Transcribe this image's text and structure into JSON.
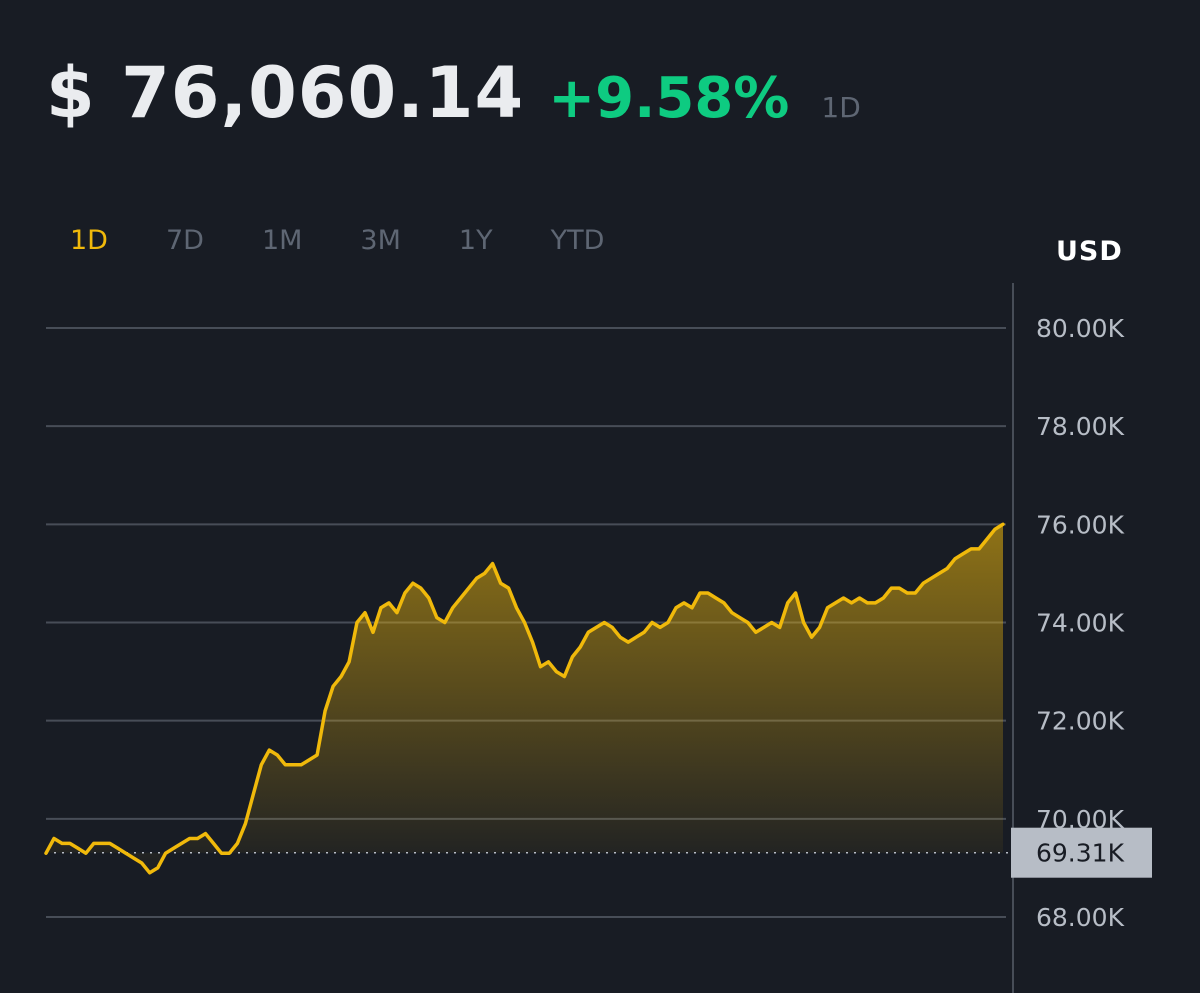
{
  "header": {
    "price": "$ 76,060.14",
    "change": "+9.58%",
    "period": "1D"
  },
  "range_tabs": [
    {
      "label": "1D",
      "active": true
    },
    {
      "label": "7D",
      "active": false
    },
    {
      "label": "1M",
      "active": false
    },
    {
      "label": "3M",
      "active": false
    },
    {
      "label": "1Y",
      "active": false
    },
    {
      "label": "YTD",
      "active": false
    }
  ],
  "currency": "USD",
  "colors": {
    "background": "#181c24",
    "line": "#f0b90b",
    "positive": "#0ecb81",
    "grid": "#474d57",
    "axis_text": "#b7bdc6",
    "inactive_tab": "#5e6673",
    "current_box": "#b7bdc6"
  },
  "chart_data": {
    "type": "area",
    "title": "",
    "xlabel": "",
    "ylabel": "",
    "ylim": [
      67000,
      80500
    ],
    "y_ticks": [
      80000,
      78000,
      76000,
      74000,
      72000,
      70000,
      68000
    ],
    "y_tick_labels": [
      "80.00K",
      "78.00K",
      "76.00K",
      "74.00K",
      "72.00K",
      "70.00K",
      "68.00K"
    ],
    "grid": true,
    "axis_position": "right",
    "open_value": 69310,
    "open_label": "69.31K",
    "series": [
      {
        "values": [
          69300,
          69600,
          69500,
          69500,
          69400,
          69300,
          69500,
          69500,
          69500,
          69400,
          69300,
          69200,
          69100,
          68900,
          69000,
          69300,
          69400,
          69500,
          69600,
          69600,
          69700,
          69500,
          69300,
          69300,
          69500,
          69900,
          70500,
          71100,
          71400,
          71300,
          71100,
          71100,
          71100,
          71200,
          71300,
          72200,
          72700,
          72900,
          73200,
          74000,
          74200,
          73800,
          74300,
          74400,
          74200,
          74600,
          74800,
          74700,
          74500,
          74100,
          74000,
          74300,
          74500,
          74700,
          74900,
          75000,
          75200,
          74800,
          74700,
          74300,
          74000,
          73600,
          73100,
          73200,
          73000,
          72900,
          73300,
          73500,
          73800,
          73900,
          74000,
          73900,
          73700,
          73600,
          73700,
          73800,
          74000,
          73900,
          74000,
          74300,
          74400,
          74300,
          74600,
          74600,
          74500,
          74400,
          74200,
          74100,
          74000,
          73800,
          73900,
          74000,
          73900,
          74400,
          74600,
          74000,
          73700,
          73900,
          74300,
          74400,
          74500,
          74400,
          74500,
          74400,
          74400,
          74500,
          74700,
          74700,
          74600,
          74600,
          74800,
          74900,
          75000,
          75100,
          75300,
          75400,
          75500,
          75500,
          75700,
          75900,
          76000
        ]
      }
    ]
  }
}
